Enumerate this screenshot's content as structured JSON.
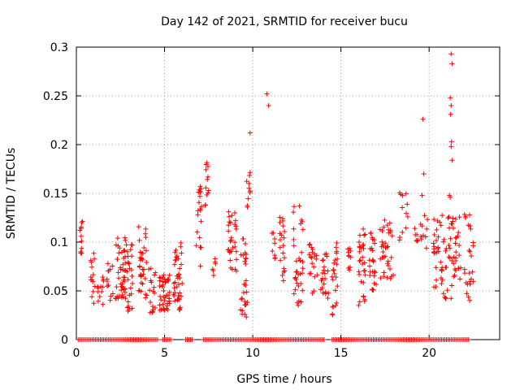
{
  "chart_data": {
    "type": "scatter",
    "title": "Day 142 of 2021, SRMTID for receiver bucu",
    "xlabel": "GPS time / hours",
    "ylabel": "SRMTID / TECUs",
    "xlim": [
      0,
      24
    ],
    "ylim": [
      0,
      0.3
    ],
    "x_ticks": [
      "0",
      "5",
      "10",
      "15",
      "20"
    ],
    "x_tick_values": [
      0,
      5,
      10,
      15,
      20
    ],
    "y_ticks": [
      "0",
      "0.05",
      "0.1",
      "0.15",
      "0.2",
      "0.25",
      "0.3"
    ],
    "y_tick_values": [
      0,
      0.05,
      0.1,
      0.15,
      0.2,
      0.25,
      0.3
    ],
    "grid": true,
    "marker": "+",
    "series": [
      {
        "name": "SRMTID",
        "color": "#ff0000",
        "clusters": [
          {
            "x": [
              0.2,
              0.35
            ],
            "y": [
              0.085,
              0.125
            ],
            "n": 9
          },
          {
            "x": [
              0.8,
              1.1
            ],
            "y": [
              0.03,
              0.09
            ],
            "n": 14
          },
          {
            "x": [
              1.2,
              1.6
            ],
            "y": [
              0.035,
              0.065
            ],
            "n": 12
          },
          {
            "x": [
              1.7,
              2.1
            ],
            "y": [
              0.04,
              0.08
            ],
            "n": 12
          },
          {
            "x": [
              2.2,
              2.8
            ],
            "y": [
              0.04,
              0.105
            ],
            "n": 45
          },
          {
            "x": [
              2.8,
              3.2
            ],
            "y": [
              0.025,
              0.11
            ],
            "n": 25
          },
          {
            "x": [
              3.5,
              4.0
            ],
            "y": [
              0.04,
              0.12
            ],
            "n": 35
          },
          {
            "x": [
              4.1,
              4.5
            ],
            "y": [
              0.025,
              0.075
            ],
            "n": 18
          },
          {
            "x": [
              4.7,
              5.3
            ],
            "y": [
              0.03,
              0.07
            ],
            "n": 40
          },
          {
            "x": [
              5.5,
              6.0
            ],
            "y": [
              0.03,
              0.1
            ],
            "n": 40
          },
          {
            "x": [
              6.8,
              7.1
            ],
            "y": [
              0.075,
              0.18
            ],
            "n": 20
          },
          {
            "x": [
              7.3,
              7.5
            ],
            "y": [
              0.13,
              0.185
            ],
            "n": 12
          },
          {
            "x": [
              7.6,
              7.9
            ],
            "y": [
              0.065,
              0.085
            ],
            "n": 6
          },
          {
            "x": [
              8.6,
              9.1
            ],
            "y": [
              0.07,
              0.135
            ],
            "n": 30
          },
          {
            "x": [
              9.3,
              9.7
            ],
            "y": [
              0.02,
              0.105
            ],
            "n": 28
          },
          {
            "x": [
              9.6,
              9.9
            ],
            "y": [
              0.13,
              0.175
            ],
            "n": 10
          },
          {
            "x": [
              11.0,
              11.3
            ],
            "y": [
              0.08,
              0.11
            ],
            "n": 8
          },
          {
            "x": [
              11.5,
              11.8
            ],
            "y": [
              0.045,
              0.13
            ],
            "n": 20
          },
          {
            "x": [
              12.3,
              12.9
            ],
            "y": [
              0.03,
              0.14
            ],
            "n": 35
          },
          {
            "x": [
              13.2,
              13.7
            ],
            "y": [
              0.04,
              0.1
            ],
            "n": 20
          },
          {
            "x": [
              13.8,
              14.3
            ],
            "y": [
              0.04,
              0.1
            ],
            "n": 22
          },
          {
            "x": [
              14.5,
              14.9
            ],
            "y": [
              0.025,
              0.1
            ],
            "n": 22
          },
          {
            "x": [
              15.3,
              15.6
            ],
            "y": [
              0.065,
              0.095
            ],
            "n": 10
          },
          {
            "x": [
              16.0,
              16.4
            ],
            "y": [
              0.035,
              0.12
            ],
            "n": 30
          },
          {
            "x": [
              16.6,
              17.0
            ],
            "y": [
              0.05,
              0.11
            ],
            "n": 25
          },
          {
            "x": [
              17.2,
              17.6
            ],
            "y": [
              0.06,
              0.125
            ],
            "n": 18
          },
          {
            "x": [
              17.6,
              18.0
            ],
            "y": [
              0.06,
              0.12
            ],
            "n": 18
          },
          {
            "x": [
              18.3,
              18.8
            ],
            "y": [
              0.095,
              0.155
            ],
            "n": 12
          },
          {
            "x": [
              19.0,
              19.4
            ],
            "y": [
              0.1,
              0.125
            ],
            "n": 6
          },
          {
            "x": [
              19.5,
              20.0
            ],
            "y": [
              0.09,
              0.135
            ],
            "n": 10
          },
          {
            "x": [
              20.2,
              20.6
            ],
            "y": [
              0.05,
              0.13
            ],
            "n": 20
          },
          {
            "x": [
              20.6,
              21.3
            ],
            "y": [
              0.04,
              0.13
            ],
            "n": 35
          },
          {
            "x": [
              21.3,
              21.8
            ],
            "y": [
              0.06,
              0.13
            ],
            "n": 25
          },
          {
            "x": [
              22.0,
              22.5
            ],
            "y": [
              0.04,
              0.135
            ],
            "n": 25
          }
        ],
        "highlights": [
          [
            0.27,
            0.106
          ],
          [
            0.3,
            0.12
          ],
          [
            9.85,
            0.212
          ],
          [
            10.8,
            0.252
          ],
          [
            10.9,
            0.24
          ],
          [
            19.65,
            0.226
          ],
          [
            19.7,
            0.17
          ],
          [
            19.6,
            0.148
          ],
          [
            21.25,
            0.293
          ],
          [
            21.3,
            0.283
          ],
          [
            21.2,
            0.248
          ],
          [
            21.25,
            0.24
          ],
          [
            21.22,
            0.231
          ],
          [
            21.27,
            0.203
          ],
          [
            21.25,
            0.198
          ],
          [
            21.3,
            0.184
          ],
          [
            21.15,
            0.148
          ],
          [
            21.2,
            0.146
          ]
        ],
        "zero_segments": [
          [
            0.1,
            4.6
          ],
          [
            4.9,
            5.4
          ],
          [
            6.2,
            6.6
          ],
          [
            7.2,
            14.1
          ],
          [
            14.5,
            22.3
          ]
        ]
      }
    ]
  }
}
